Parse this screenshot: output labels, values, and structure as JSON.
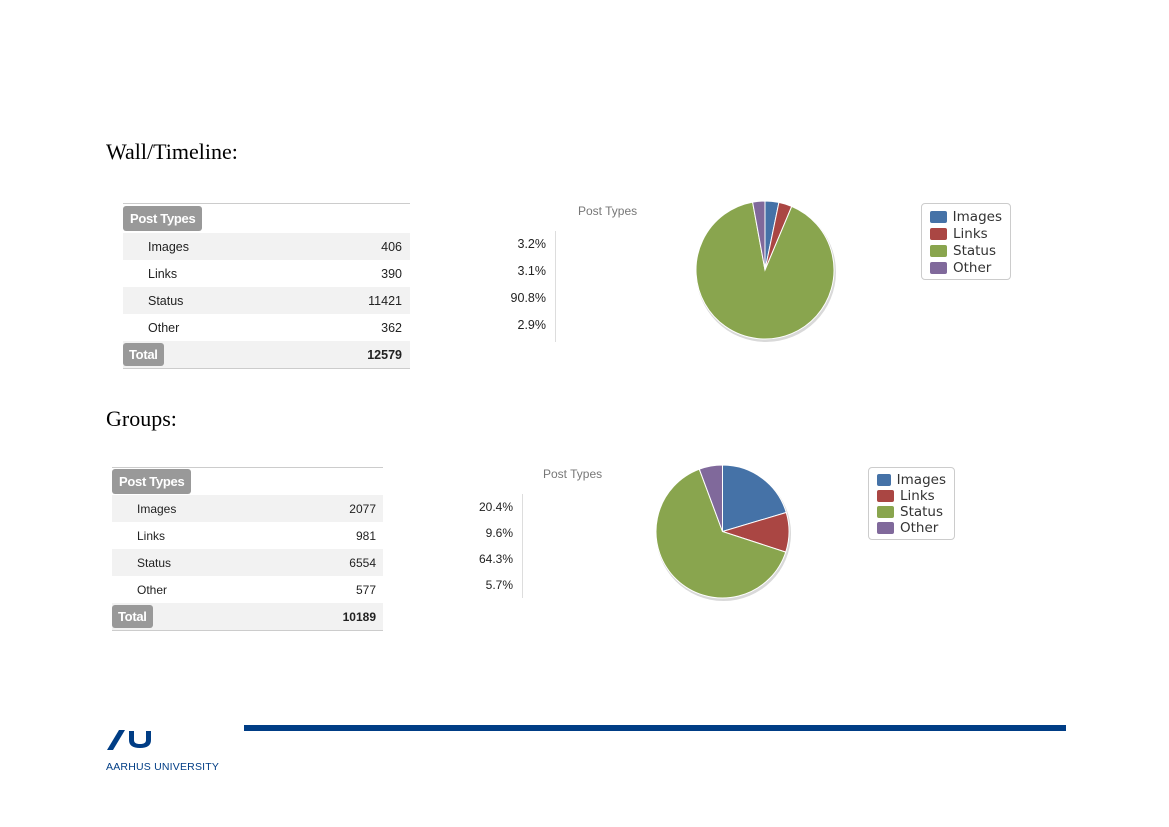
{
  "sections": [
    {
      "title": "Wall/Timeline:",
      "table": {
        "header": "Post Types",
        "rows": [
          {
            "label": "Images",
            "value": "406",
            "pct": "3.2%"
          },
          {
            "label": "Links",
            "value": "390",
            "pct": "3.1%"
          },
          {
            "label": "Status",
            "value": "11421",
            "pct": "90.8%"
          },
          {
            "label": "Other",
            "value": "362",
            "pct": "2.9%"
          }
        ],
        "total_label": "Total",
        "total_value": "12579"
      }
    },
    {
      "title": "Groups:",
      "table": {
        "header": "Post Types",
        "rows": [
          {
            "label": "Images",
            "value": "2077",
            "pct": "20.4%"
          },
          {
            "label": "Links",
            "value": "981",
            "pct": "9.6%"
          },
          {
            "label": "Status",
            "value": "6554",
            "pct": "64.3%"
          },
          {
            "label": "Other",
            "value": "577",
            "pct": "5.7%"
          }
        ],
        "total_label": "Total",
        "total_value": "10189"
      }
    }
  ],
  "chart_data": [
    {
      "type": "pie",
      "title": "Post Types",
      "categories": [
        "Images",
        "Links",
        "Status",
        "Other"
      ],
      "values": [
        406,
        390,
        11421,
        362
      ],
      "colors": [
        "#4572a7",
        "#aa4643",
        "#89a54e",
        "#80699b"
      ],
      "legend": "right"
    },
    {
      "type": "pie",
      "title": "Post Types",
      "categories": [
        "Images",
        "Links",
        "Status",
        "Other"
      ],
      "values": [
        2077,
        981,
        6554,
        577
      ],
      "colors": [
        "#4572a7",
        "#aa4643",
        "#89a54e",
        "#80699b"
      ],
      "legend": "right"
    }
  ],
  "footer": {
    "university": "AARHUS UNIVERSITY",
    "accent_color": "#003d85"
  }
}
